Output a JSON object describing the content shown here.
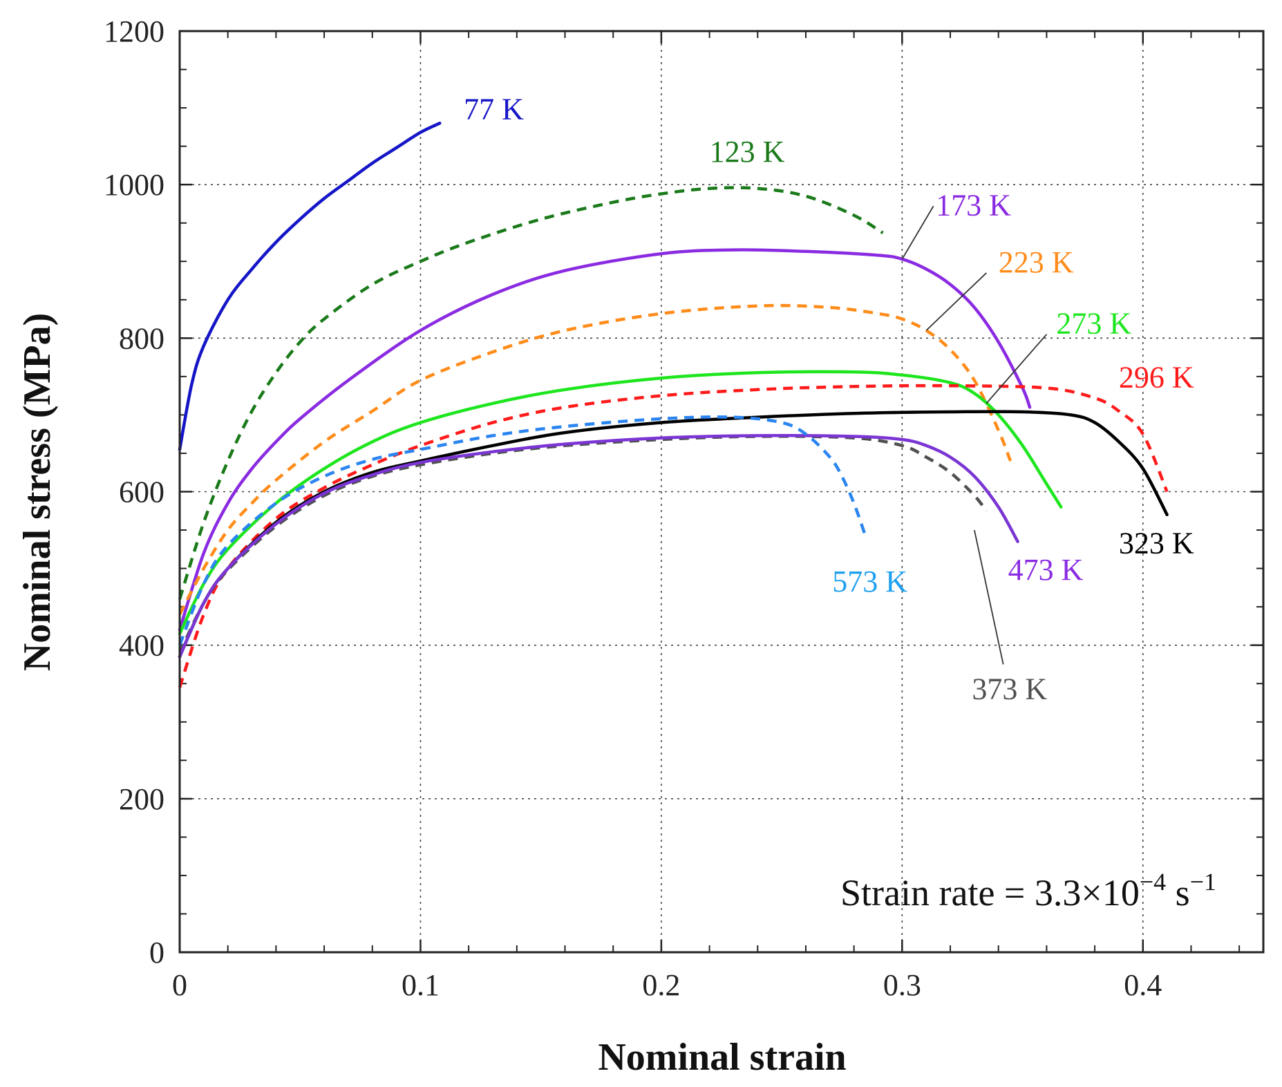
{
  "chart_data": {
    "type": "line",
    "title": "",
    "xlabel": "Nominal strain",
    "ylabel": "Nominal stress (MPa)",
    "xlim": [
      0,
      0.45
    ],
    "ylim": [
      0,
      1200
    ],
    "x_ticks": [
      0,
      0.1,
      0.2,
      0.3,
      0.4
    ],
    "x_tick_labels": [
      "0",
      "0.1",
      "0.2",
      "0.3",
      "0.4"
    ],
    "y_ticks": [
      0,
      200,
      400,
      600,
      800,
      1000,
      1200
    ],
    "y_tick_labels": [
      "0",
      "200",
      "400",
      "600",
      "800",
      "1000",
      "1200"
    ],
    "grid": true,
    "annotation": {
      "prefix": "Strain rate = 3.3",
      "times": "×",
      "base": "10",
      "exp1": "−4",
      "unit": " s",
      "exp2": "−1"
    },
    "series": [
      {
        "name": "77 K",
        "color": "#1515c8",
        "style": "solid",
        "x": [
          0,
          0.005,
          0.01,
          0.02,
          0.03,
          0.04,
          0.05,
          0.06,
          0.07,
          0.08,
          0.09,
          0.1,
          0.108
        ],
        "y": [
          655,
          740,
          790,
          850,
          890,
          925,
          955,
          982,
          1005,
          1028,
          1048,
          1068,
          1080
        ]
      },
      {
        "name": "123 K",
        "color": "#1a7a1a",
        "style": "dashed",
        "x": [
          0,
          0.01,
          0.02,
          0.03,
          0.04,
          0.05,
          0.06,
          0.08,
          0.1,
          0.12,
          0.15,
          0.18,
          0.2,
          0.22,
          0.24,
          0.26,
          0.28,
          0.292
        ],
        "y": [
          460,
          560,
          640,
          705,
          755,
          795,
          825,
          870,
          900,
          925,
          955,
          977,
          988,
          995,
          995,
          985,
          960,
          937
        ]
      },
      {
        "name": "173 K",
        "color": "#8a2be2",
        "style": "solid",
        "x": [
          0,
          0.01,
          0.02,
          0.03,
          0.04,
          0.05,
          0.07,
          0.1,
          0.13,
          0.16,
          0.2,
          0.23,
          0.26,
          0.29,
          0.3,
          0.31,
          0.32,
          0.33,
          0.34,
          0.35,
          0.353
        ],
        "y": [
          420,
          520,
          585,
          630,
          665,
          695,
          745,
          810,
          857,
          888,
          910,
          915,
          913,
          908,
          903,
          890,
          870,
          840,
          795,
          735,
          710
        ]
      },
      {
        "name": "223 K",
        "color": "#ff8c1a",
        "style": "dashed",
        "x": [
          0,
          0.01,
          0.02,
          0.03,
          0.04,
          0.06,
          0.08,
          0.1,
          0.13,
          0.16,
          0.2,
          0.24,
          0.27,
          0.29,
          0.3,
          0.31,
          0.32,
          0.33,
          0.34,
          0.345
        ],
        "y": [
          440,
          500,
          550,
          585,
          615,
          665,
          705,
          745,
          782,
          810,
          832,
          842,
          840,
          832,
          825,
          810,
          785,
          745,
          680,
          640
        ]
      },
      {
        "name": "273 K",
        "color": "#1ee61e",
        "style": "solid",
        "x": [
          0,
          0.01,
          0.02,
          0.04,
          0.06,
          0.08,
          0.1,
          0.13,
          0.16,
          0.2,
          0.24,
          0.28,
          0.3,
          0.32,
          0.33,
          0.34,
          0.35,
          0.36,
          0.366
        ],
        "y": [
          415,
          480,
          525,
          585,
          630,
          665,
          690,
          715,
          733,
          748,
          755,
          756,
          752,
          742,
          728,
          700,
          660,
          610,
          580
        ]
      },
      {
        "name": "296 K",
        "color": "#ff1a1a",
        "style": "dashed",
        "x": [
          0,
          0.01,
          0.02,
          0.04,
          0.06,
          0.08,
          0.1,
          0.13,
          0.16,
          0.2,
          0.24,
          0.28,
          0.32,
          0.36,
          0.38,
          0.39,
          0.4,
          0.41
        ],
        "y": [
          345,
          440,
          500,
          565,
          605,
          635,
          660,
          690,
          710,
          725,
          733,
          737,
          738,
          735,
          722,
          705,
          675,
          600
        ]
      },
      {
        "name": "323 K",
        "color": "#000000",
        "style": "solid",
        "x": [
          0,
          0.01,
          0.02,
          0.04,
          0.06,
          0.08,
          0.1,
          0.13,
          0.16,
          0.2,
          0.24,
          0.28,
          0.32,
          0.35,
          0.37,
          0.38,
          0.39,
          0.4,
          0.41
        ],
        "y": [
          385,
          455,
          500,
          560,
          600,
          625,
          640,
          660,
          677,
          690,
          697,
          702,
          704,
          704,
          700,
          690,
          665,
          630,
          570
        ]
      },
      {
        "name": "373 K",
        "color": "#505050",
        "style": "dashed",
        "x": [
          0,
          0.01,
          0.02,
          0.04,
          0.06,
          0.08,
          0.1,
          0.13,
          0.16,
          0.2,
          0.24,
          0.28,
          0.3,
          0.31,
          0.32,
          0.33,
          0.335
        ],
        "y": [
          390,
          455,
          498,
          555,
          595,
          620,
          635,
          650,
          660,
          668,
          672,
          670,
          660,
          645,
          625,
          595,
          575
        ]
      },
      {
        "name": "473 K",
        "color": "#7a35d4",
        "style": "solid",
        "x": [
          0,
          0.01,
          0.02,
          0.04,
          0.06,
          0.08,
          0.1,
          0.13,
          0.16,
          0.2,
          0.24,
          0.28,
          0.3,
          0.31,
          0.32,
          0.33,
          0.34,
          0.348
        ],
        "y": [
          385,
          455,
          500,
          558,
          598,
          622,
          638,
          652,
          662,
          670,
          673,
          672,
          668,
          660,
          645,
          620,
          580,
          535
        ]
      },
      {
        "name": "573 K",
        "color": "#2a85f0",
        "style": "dashed",
        "x": [
          0,
          0.01,
          0.02,
          0.04,
          0.06,
          0.08,
          0.1,
          0.13,
          0.16,
          0.2,
          0.23,
          0.25,
          0.26,
          0.27,
          0.275,
          0.28,
          0.285
        ],
        "y": [
          400,
          480,
          530,
          585,
          620,
          642,
          655,
          673,
          685,
          695,
          697,
          690,
          675,
          645,
          620,
          585,
          540
        ]
      }
    ],
    "labels": [
      {
        "text": "77 K",
        "color": "#1515c8",
        "series": "77 K",
        "anchor_x": 0.118,
        "anchor_y": 1085
      },
      {
        "text": "123 K",
        "color": "#1a7a1a",
        "series": "123 K",
        "anchor_x": 0.22,
        "anchor_y": 1030
      },
      {
        "text": "173 K",
        "color": "#8a2be2",
        "series": "173 K",
        "anchor_x": 0.314,
        "anchor_y": 960
      },
      {
        "text": "223 K",
        "color": "#ff8c1a",
        "series": "223 K",
        "anchor_x": 0.34,
        "anchor_y": 886
      },
      {
        "text": "273 K",
        "color": "#1ee61e",
        "series": "273 K",
        "anchor_x": 0.364,
        "anchor_y": 806
      },
      {
        "text": "296 K",
        "color": "#ff1a1a",
        "series": "296 K",
        "anchor_x": 0.39,
        "anchor_y": 736
      },
      {
        "text": "323 K",
        "color": "#000000",
        "series": "323 K",
        "anchor_x": 0.39,
        "anchor_y": 520
      },
      {
        "text": "473 K",
        "color": "#8a2be2",
        "series": "473 K",
        "anchor_x": 0.344,
        "anchor_y": 485
      },
      {
        "text": "573 K",
        "color": "#1ea0f0",
        "series": "573 K",
        "anchor_x": 0.271,
        "anchor_y": 470
      },
      {
        "text": "373 K",
        "color": "#505050",
        "series": "373 K",
        "anchor_x": 0.329,
        "anchor_y": 330
      }
    ],
    "leaders": [
      {
        "series": "173 K",
        "from": [
          0.3,
          903
        ],
        "to": [
          0.313,
          972
        ]
      },
      {
        "series": "223 K",
        "from": [
          0.31,
          810
        ],
        "to": [
          0.335,
          885
        ]
      },
      {
        "series": "273 K",
        "from": [
          0.335,
          715
        ],
        "to": [
          0.36,
          805
        ]
      },
      {
        "series": "373 K",
        "from": [
          0.33,
          550
        ],
        "to": [
          0.342,
          375
        ]
      }
    ]
  }
}
